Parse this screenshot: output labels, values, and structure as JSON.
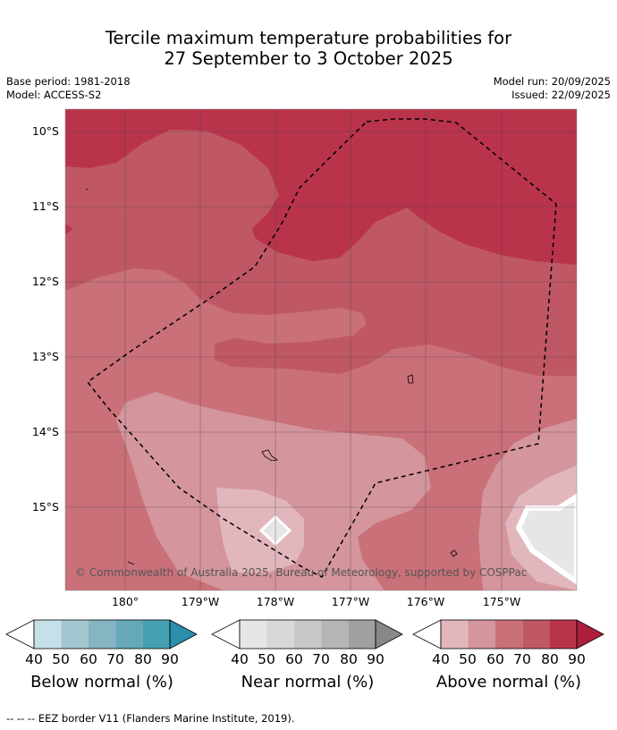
{
  "title_line1": "Tercile maximum temperature probabilities for",
  "title_line2": "27 September to 3 October 2025",
  "base_period": "Base period: 1981-2018",
  "model": "Model: ACCESS-S2",
  "model_run": "Model run: 20/09/2025",
  "issued": "Issued: 22/09/2025",
  "lat_labels": [
    "10°S",
    "11°S",
    "12°S",
    "13°S",
    "14°S",
    "15°S"
  ],
  "lon_labels": [
    "180°",
    "179°W",
    "178°W",
    "177°W",
    "176°W",
    "175°W"
  ],
  "copyright": "© Commonwealth of Australia 2025, Bureau of Meteorology, supported by COSPPac",
  "colorbars": [
    {
      "title": "Below normal (%)",
      "ticks": [
        "40",
        "50",
        "60",
        "70",
        "80",
        "90"
      ],
      "colors": [
        "#ffffff",
        "#c6e0ea",
        "#a4c6d0",
        "#85b4c2",
        "#66a8b8",
        "#45a0b2",
        "#2a8fab"
      ]
    },
    {
      "title": "Near normal (%)",
      "ticks": [
        "40",
        "50",
        "60",
        "70",
        "80",
        "90"
      ],
      "colors": [
        "#ffffff",
        "#e6e6e6",
        "#d8d8d8",
        "#c8c8c8",
        "#b5b5b5",
        "#a0a0a0",
        "#888888"
      ]
    },
    {
      "title": "Above normal (%)",
      "ticks": [
        "40",
        "50",
        "60",
        "70",
        "80",
        "90"
      ],
      "colors": [
        "#ffffff",
        "#e2b6bd",
        "#d4959c",
        "#c97078",
        "#bf5864",
        "#b9344b",
        "#ad1f3c"
      ]
    }
  ],
  "footer": "--  --  -- EEZ border V11 (Flanders Marine Institute, 2019)."
}
